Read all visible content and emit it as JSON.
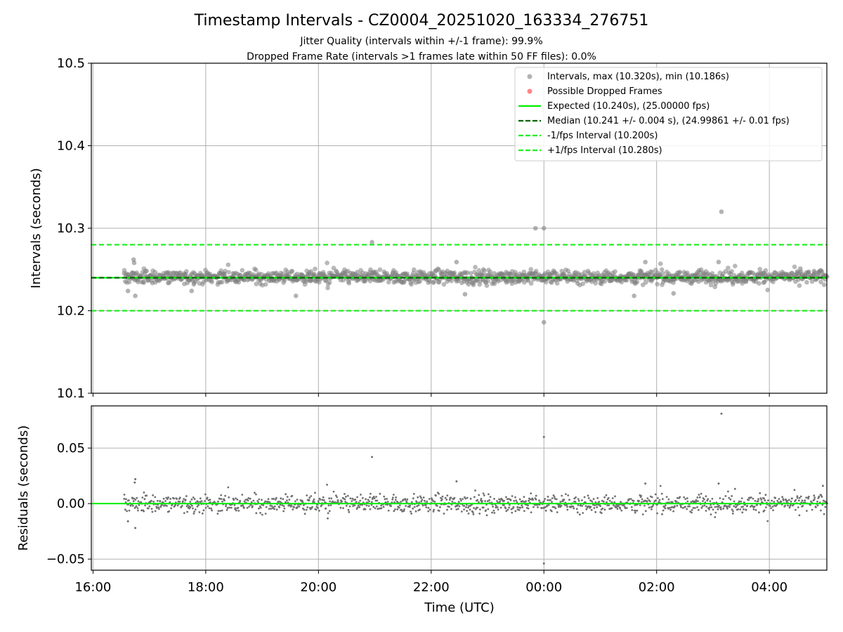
{
  "chart_data": {
    "type": "scatter",
    "title": "Timestamp Intervals - CZ0004_20251020_163334_276751",
    "subtitles": [
      "Jitter Quality (intervals within +/-1 frame): 99.9%",
      "Dropped Frame Rate (intervals >1 frames late within 50 FF files): 0.0%"
    ],
    "xlabel": "Time (UTC)",
    "x_ticks": [
      "16:00",
      "18:00",
      "20:00",
      "22:00",
      "00:00",
      "02:00",
      "04:00"
    ],
    "x_range_hours": [
      15.97,
      29.02
    ],
    "top": {
      "ylabel": "Intervals (seconds)",
      "ylim": [
        10.1,
        10.5
      ],
      "y_ticks": [
        "10.1",
        "10.2",
        "10.3",
        "10.4",
        "10.5"
      ],
      "grid": true,
      "legend_position": "top-right",
      "legend": [
        {
          "label": "Intervals, max (10.320s), min (10.186s)",
          "marker": "circle",
          "color": "#808080"
        },
        {
          "label": "Possible Dropped Frames",
          "marker": "circle",
          "color": "#ff3333"
        },
        {
          "label": "Expected (10.240s), (25.00000 fps)",
          "line": "solid",
          "color": "#00ee00"
        },
        {
          "label": "Median (10.241 +/- 0.004 s), (24.99861 +/- 0.01 fps)",
          "line": "dashed",
          "color": "#006400"
        },
        {
          "label": "-1/fps Interval (10.200s)",
          "line": "dashed",
          "color": "#22ee22"
        },
        {
          "label": "+1/fps Interval (10.280s)",
          "line": "dashed",
          "color": "#22ee22"
        }
      ],
      "reference_lines": {
        "expected": 10.24,
        "median": 10.241,
        "lower": 10.2,
        "upper": 10.28
      },
      "band": {
        "start_hour": 16.55,
        "end_hour": 29.02,
        "center": 10.241,
        "jitter": 0.004
      },
      "outliers": [
        {
          "x": 16.72,
          "y": 10.262
        },
        {
          "x": 16.73,
          "y": 10.258
        },
        {
          "x": 16.75,
          "y": 10.218
        },
        {
          "x": 16.62,
          "y": 10.224
        },
        {
          "x": 17.75,
          "y": 10.224
        },
        {
          "x": 19.6,
          "y": 10.218
        },
        {
          "x": 20.95,
          "y": 10.283
        },
        {
          "x": 22.45,
          "y": 10.259
        },
        {
          "x": 22.6,
          "y": 10.22
        },
        {
          "x": 23.85,
          "y": 10.3
        },
        {
          "x": 24.0,
          "y": 10.3
        },
        {
          "x": 24.0,
          "y": 10.186
        },
        {
          "x": 25.8,
          "y": 10.259
        },
        {
          "x": 25.6,
          "y": 10.218
        },
        {
          "x": 26.3,
          "y": 10.221
        },
        {
          "x": 27.1,
          "y": 10.259
        },
        {
          "x": 27.15,
          "y": 10.32
        },
        {
          "x": 28.55,
          "y": 10.251
        }
      ]
    },
    "bottom": {
      "ylabel": "Residuals (seconds)",
      "ylim": [
        -0.06,
        0.088
      ],
      "y_ticks": [
        "−0.05",
        "0.00",
        "0.05"
      ],
      "y_tick_values": [
        -0.05,
        0.0,
        0.05
      ],
      "grid": true,
      "outliers": [
        {
          "x": 16.75,
          "y": 0.022
        },
        {
          "x": 16.74,
          "y": 0.019
        },
        {
          "x": 16.75,
          "y": -0.022
        },
        {
          "x": 16.62,
          "y": -0.016
        },
        {
          "x": 20.95,
          "y": 0.042
        },
        {
          "x": 22.45,
          "y": 0.02
        },
        {
          "x": 24.0,
          "y": 0.06
        },
        {
          "x": 24.0,
          "y": -0.054
        },
        {
          "x": 25.8,
          "y": 0.018
        },
        {
          "x": 27.1,
          "y": 0.018
        },
        {
          "x": 27.15,
          "y": 0.081
        },
        {
          "x": 28.95,
          "y": 0.016
        }
      ]
    }
  }
}
